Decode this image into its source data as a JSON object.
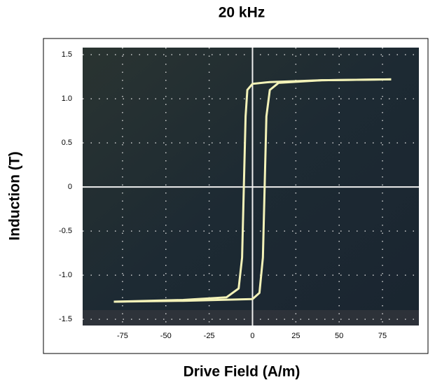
{
  "chart_data": {
    "type": "line",
    "title": "20 kHz",
    "x_label": "Drive Field (A/m)",
    "y_label": "Induction (T)",
    "xlim": [
      -98,
      96
    ],
    "ylim": [
      -1.57,
      1.58
    ],
    "xticks": [
      -75,
      -50,
      -25,
      0,
      25,
      50,
      75
    ],
    "yticks": [
      1.5,
      {
        "value": 1,
        "label": "1.0"
      },
      0.5,
      0,
      -0.5,
      {
        "value": -1,
        "label": "-1.0"
      },
      -1.5
    ],
    "grid": true,
    "series": [
      {
        "color": "#f3f2b8",
        "x": [
          80,
          40,
          10,
          0,
          -3,
          -4,
          -5,
          -6,
          -8,
          -15,
          -40,
          -80
        ],
        "values": [
          1.22,
          1.21,
          1.19,
          1.17,
          1.1,
          0.8,
          0,
          -0.8,
          -1.15,
          -1.25,
          -1.28,
          -1.3
        ]
      },
      {
        "color": "#f3f2b8",
        "x": [
          -80,
          -40,
          0,
          4,
          6,
          7,
          8,
          10,
          15,
          40,
          80
        ],
        "values": [
          -1.3,
          -1.29,
          -1.27,
          -1.2,
          -0.8,
          0,
          0.8,
          1.1,
          1.18,
          1.21,
          1.22
        ]
      }
    ]
  }
}
